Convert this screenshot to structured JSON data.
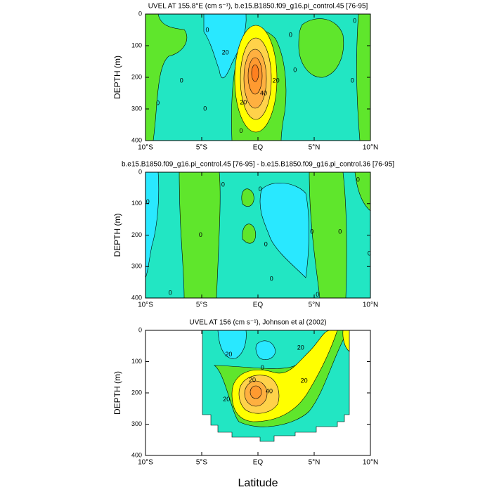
{
  "chart_data": [
    {
      "type": "contour",
      "title": "UVEL AT 155.8°E (cm s⁻¹), b.e15.B1850.f09_g16.pi_control.45 [76-95]",
      "ylabel": "DEPTH (m)",
      "xlim": [
        -10,
        10
      ],
      "ylim": [
        400,
        0
      ],
      "xticks": [
        {
          "value": -10,
          "label": "10°S"
        },
        {
          "value": -5,
          "label": "5°S"
        },
        {
          "value": 0,
          "label": "EQ"
        },
        {
          "value": 5,
          "label": "5°N"
        },
        {
          "value": 10,
          "label": "10°N"
        }
      ],
      "yticks": [
        0,
        100,
        200,
        300,
        400
      ],
      "contour_labels": [
        {
          "value": 20,
          "lat": -2.9,
          "depth": 122
        },
        {
          "value": 20,
          "lat": 1.6,
          "depth": 211
        },
        {
          "value": 40,
          "lat": 0.5,
          "depth": 251
        },
        {
          "value": 20,
          "lat": -1.3,
          "depth": 280
        },
        {
          "value": 0,
          "lat": -4.5,
          "depth": 51
        },
        {
          "value": 0,
          "lat": -6.8,
          "depth": 211
        },
        {
          "value": 0,
          "lat": -8.9,
          "depth": 282
        },
        {
          "value": 0,
          "lat": -4.7,
          "depth": 300
        },
        {
          "value": 0,
          "lat": 2.9,
          "depth": 67
        },
        {
          "value": 0,
          "lat": 3.3,
          "depth": 178
        },
        {
          "value": 0,
          "lat": 8.4,
          "depth": 211
        },
        {
          "value": 0,
          "lat": 8.6,
          "depth": 22
        },
        {
          "value": 0,
          "lat": -1.5,
          "depth": 370
        }
      ]
    },
    {
      "type": "contour",
      "title": "b.e15.B1850.f09_g16.pi_control.45 [76-95] - b.e15.B1850.f09_g16.pi_control.36 [76-95]",
      "ylabel": "DEPTH (m)",
      "xlim": [
        -10,
        10
      ],
      "ylim": [
        400,
        0
      ],
      "xticks": [
        {
          "value": -10,
          "label": "10°S"
        },
        {
          "value": -5,
          "label": "5°S"
        },
        {
          "value": 0,
          "label": "EQ"
        },
        {
          "value": 5,
          "label": "5°N"
        },
        {
          "value": 10,
          "label": "10°N"
        }
      ],
      "yticks": [
        0,
        100,
        200,
        300,
        400
      ],
      "contour_labels": [
        {
          "value": 0,
          "lat": -9.8,
          "depth": 95
        },
        {
          "value": 0,
          "lat": -5.1,
          "depth": 200
        },
        {
          "value": 0,
          "lat": -3.1,
          "depth": 40
        },
        {
          "value": 0,
          "lat": 0.2,
          "depth": 55
        },
        {
          "value": 0,
          "lat": 0.7,
          "depth": 230
        },
        {
          "value": 0,
          "lat": 4.8,
          "depth": 190
        },
        {
          "value": 0,
          "lat": 7.3,
          "depth": 190
        },
        {
          "value": 0,
          "lat": 8.9,
          "depth": 25
        },
        {
          "value": 0,
          "lat": 9.9,
          "depth": 260
        },
        {
          "value": 0,
          "lat": -7.8,
          "depth": 385
        },
        {
          "value": 0,
          "lat": 5.3,
          "depth": 390
        },
        {
          "value": 0,
          "lat": 1.2,
          "depth": 340
        }
      ]
    },
    {
      "type": "contour",
      "title": "UVEL AT 156 (cm s⁻¹), Johnson et al (2002)",
      "ylabel": "DEPTH (m)",
      "xlabel": "Latitude",
      "xlim": [
        -10,
        10
      ],
      "ylim": [
        400,
        0
      ],
      "xticks": [
        {
          "value": -10,
          "label": "10°S"
        },
        {
          "value": -5,
          "label": "5°S"
        },
        {
          "value": 0,
          "label": "EQ"
        },
        {
          "value": 5,
          "label": "5°N"
        },
        {
          "value": 10,
          "label": "10°N"
        }
      ],
      "yticks": [
        0,
        100,
        200,
        300,
        400
      ],
      "contour_labels": [
        {
          "value": 20,
          "lat": -2.6,
          "depth": 78
        },
        {
          "value": 20,
          "lat": 3.8,
          "depth": 56
        },
        {
          "value": 20,
          "lat": 4.1,
          "depth": 162
        },
        {
          "value": 40,
          "lat": 1.0,
          "depth": 196
        },
        {
          "value": 20,
          "lat": -2.8,
          "depth": 222
        },
        {
          "value": 0,
          "lat": 0.4,
          "depth": 120
        },
        {
          "value": 20,
          "lat": -0.5,
          "depth": 160
        }
      ]
    }
  ]
}
